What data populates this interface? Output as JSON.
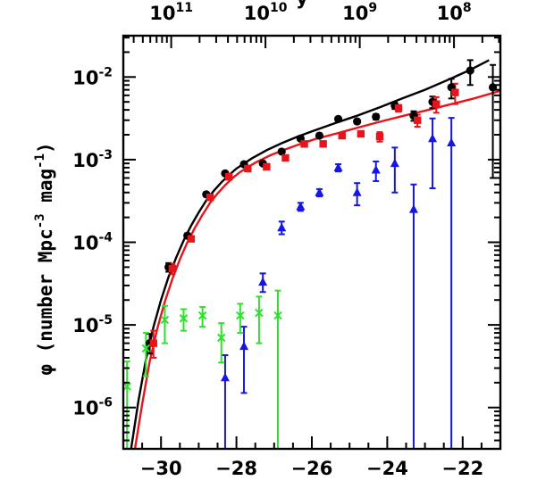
{
  "chart_data": {
    "type": "scatter",
    "title": "",
    "ylabel": {
      "symbol": "φ",
      "text": "(number Mpc",
      "exp1": "-3",
      "mid": " mag",
      "exp2": "-1",
      "close": ")"
    },
    "xlabel": "",
    "xlim": [
      -31.0,
      -21.0
    ],
    "ylim_log10": [
      -6.5,
      -1.5
    ],
    "y_scale": "log",
    "x_ticks": [
      -30,
      -28,
      -26,
      -24,
      -22
    ],
    "x_tick_labels": [
      "−30",
      "−28",
      "−26",
      "−24",
      "−22"
    ],
    "y_ticks": [
      {
        "log": -6,
        "base": "10",
        "exp": "-6"
      },
      {
        "log": -5,
        "base": "10",
        "exp": "-5"
      },
      {
        "log": -4,
        "base": "10",
        "exp": "-4"
      },
      {
        "log": -3,
        "base": "10",
        "exp": "-3"
      },
      {
        "log": -2,
        "base": "10",
        "exp": "-2"
      }
    ],
    "top_axis": {
      "labels": [
        {
          "mag": -29.73,
          "base": "10",
          "exp": "11"
        },
        {
          "mag": -27.23,
          "base": "10",
          "exp": "10"
        },
        {
          "mag": -24.73,
          "base": "10",
          "exp": "9"
        },
        {
          "mag": -22.23,
          "base": "10",
          "exp": "8"
        }
      ],
      "label_fragment": "y"
    },
    "series": [
      {
        "marker": "circle",
        "color": "#000000",
        "points": [
          {
            "x": -30.3,
            "y": 6e-06,
            "lo": 4.5e-06,
            "hi": 7.8e-06
          },
          {
            "x": -29.8,
            "y": 5e-05,
            "lo": 4.4e-05,
            "hi": 5.6e-05
          },
          {
            "x": -29.3,
            "y": 0.00012,
            "lo": 0.000112,
            "hi": 0.000128
          },
          {
            "x": -28.8,
            "y": 0.00038,
            "lo": 0.00036,
            "hi": 0.0004
          },
          {
            "x": -28.3,
            "y": 0.00068,
            "lo": 0.00065,
            "hi": 0.00071
          },
          {
            "x": -27.8,
            "y": 0.00088,
            "lo": 0.00084,
            "hi": 0.00092
          },
          {
            "x": -27.3,
            "y": 0.0009,
            "lo": 0.00086,
            "hi": 0.00094
          },
          {
            "x": -26.8,
            "y": 0.00125,
            "lo": 0.00119,
            "hi": 0.00131
          },
          {
            "x": -26.3,
            "y": 0.0018,
            "lo": 0.0017,
            "hi": 0.0019
          },
          {
            "x": -25.8,
            "y": 0.00195,
            "lo": 0.00185,
            "hi": 0.00205
          },
          {
            "x": -25.3,
            "y": 0.0031,
            "lo": 0.00295,
            "hi": 0.00325
          },
          {
            "x": -24.8,
            "y": 0.0029,
            "lo": 0.00275,
            "hi": 0.00305
          },
          {
            "x": -24.3,
            "y": 0.0033,
            "lo": 0.00305,
            "hi": 0.00355
          },
          {
            "x": -23.8,
            "y": 0.0045,
            "lo": 0.0041,
            "hi": 0.0049
          },
          {
            "x": -23.3,
            "y": 0.0034,
            "lo": 0.00295,
            "hi": 0.00385
          },
          {
            "x": -22.8,
            "y": 0.005,
            "lo": 0.0042,
            "hi": 0.0058
          },
          {
            "x": -22.3,
            "y": 0.0075,
            "lo": 0.0055,
            "hi": 0.0095
          },
          {
            "x": -21.8,
            "y": 0.012,
            "lo": 0.008,
            "hi": 0.016
          },
          {
            "x": -21.2,
            "y": 0.0075,
            "lo": 0.0006,
            "hi": 0.014
          }
        ]
      },
      {
        "marker": "square",
        "color": "#e8141b",
        "points": [
          {
            "x": -30.2,
            "y": 6e-06,
            "lo": 4e-06,
            "hi": 8.5e-06
          },
          {
            "x": -29.7,
            "y": 4.8e-05,
            "lo": 4.1e-05,
            "hi": 5.5e-05
          },
          {
            "x": -29.2,
            "y": 0.00011,
            "lo": 0.000103,
            "hi": 0.000117
          },
          {
            "x": -28.7,
            "y": 0.00035,
            "lo": 0.000335,
            "hi": 0.000365
          },
          {
            "x": -28.2,
            "y": 0.00062,
            "lo": 0.000595,
            "hi": 0.000645
          },
          {
            "x": -27.7,
            "y": 0.00078,
            "lo": 0.00075,
            "hi": 0.00081
          },
          {
            "x": -27.2,
            "y": 0.00082,
            "lo": 0.000785,
            "hi": 0.000855
          },
          {
            "x": -26.7,
            "y": 0.00105,
            "lo": 0.001,
            "hi": 0.0011
          },
          {
            "x": -26.2,
            "y": 0.00155,
            "lo": 0.00148,
            "hi": 0.00162
          },
          {
            "x": -25.7,
            "y": 0.00155,
            "lo": 0.00148,
            "hi": 0.00162
          },
          {
            "x": -25.2,
            "y": 0.00195,
            "lo": 0.00185,
            "hi": 0.00205
          },
          {
            "x": -24.7,
            "y": 0.00205,
            "lo": 0.00195,
            "hi": 0.00215
          },
          {
            "x": -24.2,
            "y": 0.0019,
            "lo": 0.00165,
            "hi": 0.00215
          },
          {
            "x": -23.7,
            "y": 0.0042,
            "lo": 0.0038,
            "hi": 0.0046
          },
          {
            "x": -23.2,
            "y": 0.003,
            "lo": 0.0025,
            "hi": 0.0035
          },
          {
            "x": -22.7,
            "y": 0.0047,
            "lo": 0.0037,
            "hi": 0.0057
          },
          {
            "x": -22.2,
            "y": 0.0065,
            "lo": 0.0047,
            "hi": 0.0083
          }
        ]
      },
      {
        "marker": "triangle",
        "color": "#1515e6",
        "points": [
          {
            "x": -28.3,
            "y": 2.3e-06,
            "lo": 3e-07,
            "hi": 4.3e-06
          },
          {
            "x": -27.8,
            "y": 5.5e-06,
            "lo": 1.5e-06,
            "hi": 9.5e-06
          },
          {
            "x": -27.3,
            "y": 3.3e-05,
            "lo": 2.5e-05,
            "hi": 4.2e-05
          },
          {
            "x": -26.8,
            "y": 0.00015,
            "lo": 0.000125,
            "hi": 0.000178
          },
          {
            "x": -26.3,
            "y": 0.00027,
            "lo": 0.00024,
            "hi": 0.0003
          },
          {
            "x": -25.8,
            "y": 0.0004,
            "lo": 0.00036,
            "hi": 0.00044
          },
          {
            "x": -25.3,
            "y": 0.0008,
            "lo": 0.00072,
            "hi": 0.00088
          },
          {
            "x": -24.8,
            "y": 0.0004,
            "lo": 0.00028,
            "hi": 0.00052
          },
          {
            "x": -24.3,
            "y": 0.00075,
            "lo": 0.00055,
            "hi": 0.00095
          },
          {
            "x": -23.8,
            "y": 0.0009,
            "lo": 0.0004,
            "hi": 0.0014
          },
          {
            "x": -23.3,
            "y": 0.00025,
            "lo": 3e-07,
            "hi": 0.0005
          },
          {
            "x": -22.8,
            "y": 0.0018,
            "lo": 0.00045,
            "hi": 0.00315
          },
          {
            "x": -22.3,
            "y": 0.0016,
            "lo": 3e-07,
            "hi": 0.0032
          }
        ]
      },
      {
        "marker": "cross",
        "color": "#2fe02f",
        "points": [
          {
            "x": -30.9,
            "y": 1.8e-06,
            "lo": 3e-07,
            "hi": 3.6e-06
          },
          {
            "x": -30.4,
            "y": 5.2e-06,
            "lo": 2.4e-06,
            "hi": 8e-06
          },
          {
            "x": -29.9,
            "y": 1.15e-05,
            "lo": 6e-06,
            "hi": 1.7e-05
          },
          {
            "x": -29.4,
            "y": 1.2e-05,
            "lo": 8.5e-06,
            "hi": 1.55e-05
          },
          {
            "x": -28.9,
            "y": 1.3e-05,
            "lo": 9.5e-06,
            "hi": 1.65e-05
          },
          {
            "x": -28.4,
            "y": 7e-06,
            "lo": 3.5e-06,
            "hi": 1.05e-05
          },
          {
            "x": -27.9,
            "y": 1.3e-05,
            "lo": 8e-06,
            "hi": 1.8e-05
          },
          {
            "x": -27.4,
            "y": 1.4e-05,
            "lo": 6e-06,
            "hi": 2.2e-05
          },
          {
            "x": -26.9,
            "y": 1.3e-05,
            "lo": 3e-07,
            "hi": 2.6e-05
          }
        ]
      }
    ],
    "curves": [
      {
        "color": "#000000",
        "x": [
          -30.8,
          -30.6,
          -30.4,
          -30.2,
          -30.0,
          -29.8,
          -29.6,
          -29.4,
          -29.2,
          -29.0,
          -28.8,
          -28.6,
          -28.4,
          -28.2,
          -28.0,
          -27.6,
          -27.2,
          -26.8,
          -26.4,
          -26.0,
          -25.4,
          -24.8,
          -24.2,
          -23.6,
          -23.0,
          -22.4,
          -21.8,
          -21.3
        ],
        "y": [
          3e-07,
          1.2e-06,
          3.8e-06,
          9.5e-06,
          2e-05,
          3.8e-05,
          6.5e-05,
          0.000105,
          0.00016,
          0.00023,
          0.00032,
          0.00042,
          0.00053,
          0.00065,
          0.00078,
          0.00103,
          0.0013,
          0.00158,
          0.00188,
          0.0022,
          0.00275,
          0.0034,
          0.0043,
          0.0055,
          0.007,
          0.0092,
          0.0122,
          0.016
        ]
      },
      {
        "color": "#e8141b",
        "x": [
          -30.7,
          -30.5,
          -30.3,
          -30.1,
          -29.9,
          -29.7,
          -29.5,
          -29.3,
          -29.1,
          -28.9,
          -28.7,
          -28.5,
          -28.3,
          -28.1,
          -27.9,
          -27.5,
          -27.1,
          -26.7,
          -26.3,
          -25.9,
          -25.3,
          -24.7,
          -24.1,
          -23.5,
          -22.9,
          -22.3,
          -21.7,
          -21.0
        ],
        "y": [
          3e-07,
          1.1e-06,
          3.6e-06,
          9e-06,
          1.9e-05,
          3.6e-05,
          6.2e-05,
          0.0001,
          0.00015,
          0.000215,
          0.0003,
          0.00039,
          0.00049,
          0.0006,
          0.00071,
          0.00092,
          0.00113,
          0.00133,
          0.00155,
          0.00178,
          0.0021,
          0.0025,
          0.00295,
          0.00345,
          0.004,
          0.0047,
          0.0055,
          0.0068
        ]
      }
    ]
  }
}
